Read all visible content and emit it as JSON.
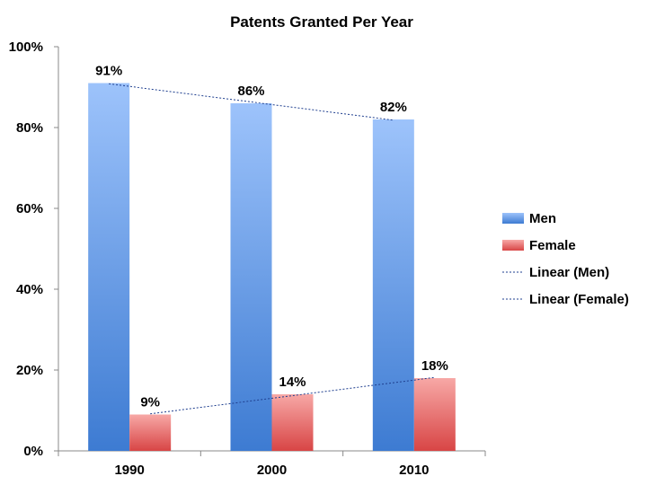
{
  "colors": {
    "men_top": "#9dc3fb",
    "men_bottom": "#3d7bd2",
    "female_top": "#f7a8a6",
    "female_bottom": "#d84545",
    "trend": "#1f3f8f",
    "axis": "#888888"
  },
  "chart_data": {
    "type": "bar",
    "title": "Patents Granted Per Year",
    "categories": [
      "1990",
      "2000",
      "2010"
    ],
    "series": [
      {
        "name": "Men",
        "values": [
          91,
          86,
          82
        ],
        "labels": [
          "91%",
          "86%",
          "82%"
        ]
      },
      {
        "name": "Female",
        "values": [
          9,
          14,
          18
        ],
        "labels": [
          "9%",
          "14%",
          "18%"
        ]
      }
    ],
    "trendlines": [
      {
        "name": "Linear (Men)",
        "series": "Men",
        "type": "linear"
      },
      {
        "name": "Linear (Female)",
        "series": "Female",
        "type": "linear"
      }
    ],
    "y_ticks": [
      "0%",
      "20%",
      "40%",
      "60%",
      "80%",
      "100%"
    ],
    "ylim": [
      0,
      100
    ],
    "xlabel": "",
    "ylabel": "",
    "grid": false,
    "legend": "right"
  }
}
